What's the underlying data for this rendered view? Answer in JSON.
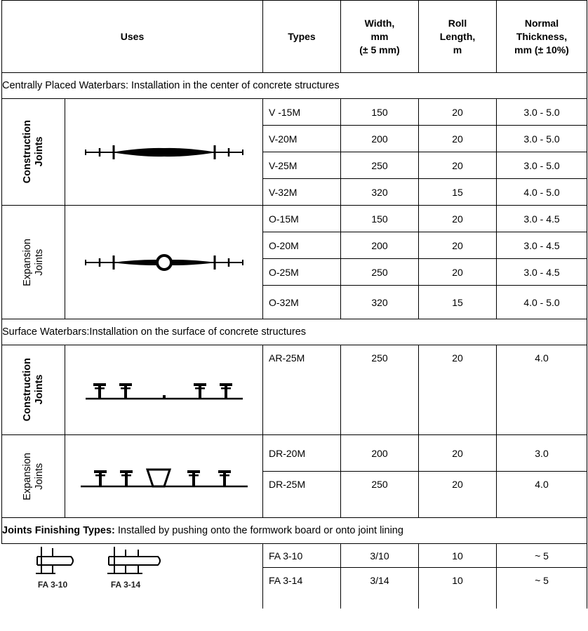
{
  "header": {
    "uses": "Uses",
    "types": "Types",
    "width": [
      "Width,",
      "mm",
      "(± 5 mm)"
    ],
    "roll": [
      "Roll",
      "Length,",
      "m"
    ],
    "thickness": [
      "Normal",
      "Thickness,",
      "mm (± 10%)"
    ]
  },
  "sections": {
    "central": "Centrally Placed Waterbars: Installation in the center of concrete structures",
    "surface": "Surface Waterbars:Installation on the surface of concrete structures",
    "finishing_bold": "Joints Finishing Types:",
    "finishing_rest": " Installed by pushing onto the formwork board or onto joint lining"
  },
  "groups": {
    "construction": [
      "Construction",
      "Joints"
    ],
    "expansion": [
      "Expansion",
      "Joints"
    ]
  },
  "rows": {
    "v15": [
      "V -15M",
      "150",
      "20",
      "3.0 - 5.0"
    ],
    "v20": [
      "V-20M",
      "200",
      "20",
      "3.0 - 5.0"
    ],
    "v25": [
      "V-25M",
      "250",
      "20",
      "3.0 - 5.0"
    ],
    "v32": [
      "V-32M",
      "320",
      "15",
      "4.0 - 5.0"
    ],
    "o15": [
      "O-15M",
      "150",
      "20",
      "3.0 - 4.5"
    ],
    "o20": [
      "O-20M",
      "200",
      "20",
      "3.0 - 4.5"
    ],
    "o25": [
      "O-25M",
      "250",
      "20",
      "3.0 - 4.5"
    ],
    "o32": [
      "O-32M",
      "320",
      "15",
      "4.0 - 5.0"
    ],
    "ar25": [
      "AR-25M",
      "250",
      "20",
      "4.0"
    ],
    "dr20": [
      "DR-20M",
      "200",
      "20",
      "3.0"
    ],
    "dr25": [
      "DR-25M",
      "250",
      "20",
      "4.0"
    ],
    "fa310": [
      "FA 3-10",
      "3/10",
      "10",
      "~ 5"
    ],
    "fa314": [
      "FA 3-14",
      "3/14",
      "10",
      "~ 5"
    ]
  },
  "profile_labels": {
    "fa310": "FA 3-10",
    "fa314": "FA 3-14"
  }
}
